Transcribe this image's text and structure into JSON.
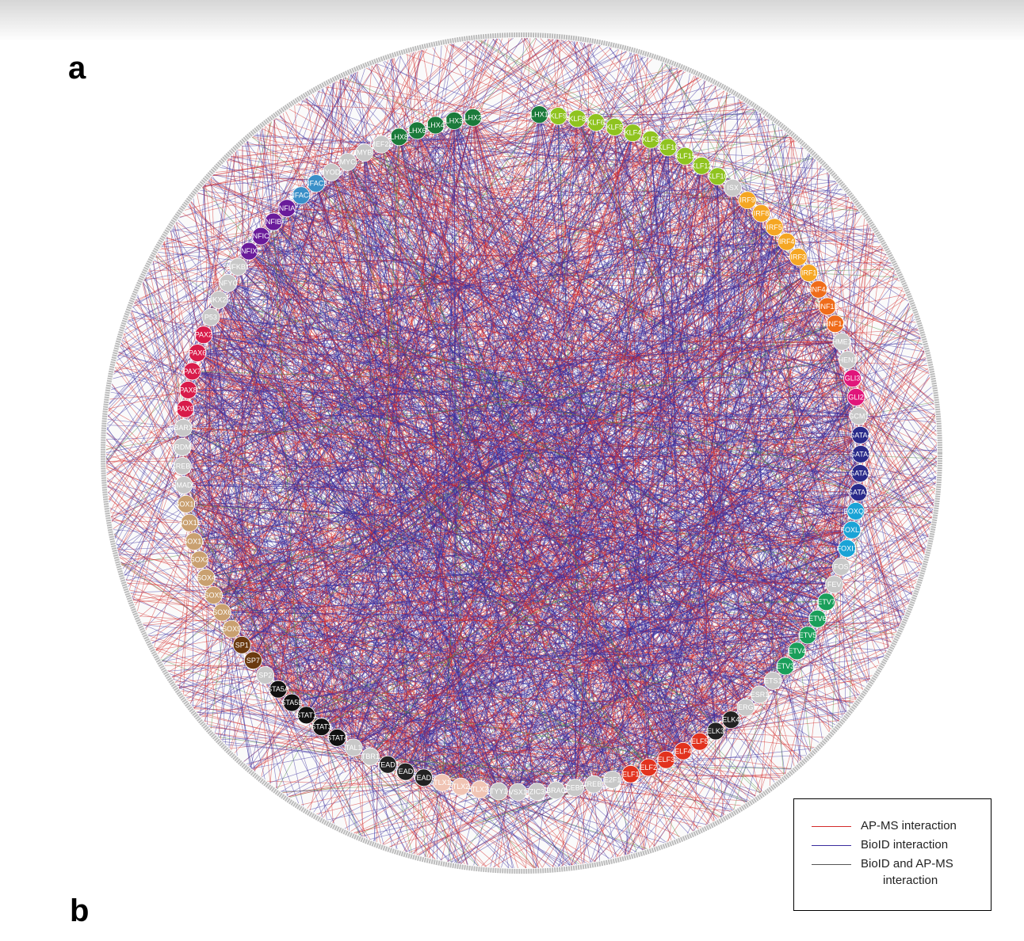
{
  "figure": {
    "panel_a_label": "a",
    "panel_b_label": "b"
  },
  "colors": {
    "ap_ms": "#d42a2a",
    "bioid": "#3a2e9e",
    "both": "#4b8a3a",
    "outer_ring": "#bbbbbb"
  },
  "legend": {
    "ap_ms_label": "AP-MS interaction",
    "bioid_label": "BioID interaction",
    "both_label_line1": "BioID  and AP-MS",
    "both_label_line2": "interaction"
  },
  "nodes": [
    {
      "label": "LHX1",
      "color": "#1b7a3a"
    },
    {
      "label": "KLF9",
      "color": "#8fc31f"
    },
    {
      "label": "KLF8",
      "color": "#8fc31f"
    },
    {
      "label": "KLF6",
      "color": "#8fc31f"
    },
    {
      "label": "KLF5",
      "color": "#8fc31f"
    },
    {
      "label": "KLF4",
      "color": "#8fc31f"
    },
    {
      "label": "KLF3",
      "color": "#8fc31f"
    },
    {
      "label": "KLF16",
      "color": "#8fc31f"
    },
    {
      "label": "KLF15",
      "color": "#8fc31f"
    },
    {
      "label": "KLF12",
      "color": "#8fc31f"
    },
    {
      "label": "KLF10",
      "color": "#8fc31f"
    },
    {
      "label": "ISX",
      "color": "#c8c8c8"
    },
    {
      "label": "IRF9",
      "color": "#f5a623"
    },
    {
      "label": "IRF8",
      "color": "#f5a623"
    },
    {
      "label": "IRF5",
      "color": "#f5a623"
    },
    {
      "label": "IRF4",
      "color": "#f5a623"
    },
    {
      "label": "IRF3",
      "color": "#f5a623"
    },
    {
      "label": "IRF1",
      "color": "#f5a623"
    },
    {
      "label": "HNF4A",
      "color": "#ef6c1a"
    },
    {
      "label": "HNF1B",
      "color": "#ef6c1a"
    },
    {
      "label": "HNF1A",
      "color": "#ef6c1a"
    },
    {
      "label": "HME1",
      "color": "#c8c8c8"
    },
    {
      "label": "HEN1",
      "color": "#c8c8c8"
    },
    {
      "label": "GLI3",
      "color": "#e0157a"
    },
    {
      "label": "GLI2",
      "color": "#e0157a"
    },
    {
      "label": "GCM1",
      "color": "#c8c8c8"
    },
    {
      "label": "GATA4",
      "color": "#2a2a8a"
    },
    {
      "label": "GATA3",
      "color": "#2a2a8a"
    },
    {
      "label": "GATA2",
      "color": "#2a2a8a"
    },
    {
      "label": "GATA1",
      "color": "#2a2a8a"
    },
    {
      "label": "FOXQ1",
      "color": "#1aa3d6"
    },
    {
      "label": "FOXL1",
      "color": "#1aa3d6"
    },
    {
      "label": "FOXI1",
      "color": "#1aa3d6"
    },
    {
      "label": "FOS",
      "color": "#c8c8c8"
    },
    {
      "label": "FEV",
      "color": "#c8c8c8"
    },
    {
      "label": "ETV7",
      "color": "#1a9e5a"
    },
    {
      "label": "ETV6",
      "color": "#1a9e5a"
    },
    {
      "label": "ETV5",
      "color": "#1a9e5a"
    },
    {
      "label": "ETV4",
      "color": "#1a9e5a"
    },
    {
      "label": "ETV3",
      "color": "#1a9e5a"
    },
    {
      "label": "ETS1",
      "color": "#c8c8c8"
    },
    {
      "label": "ESR1",
      "color": "#c8c8c8"
    },
    {
      "label": "ERG",
      "color": "#c8c8c8"
    },
    {
      "label": "ELK4",
      "color": "#222222"
    },
    {
      "label": "ELK3",
      "color": "#222222"
    },
    {
      "label": "ELF5",
      "color": "#e2321e"
    },
    {
      "label": "ELF4",
      "color": "#e2321e"
    },
    {
      "label": "ELF3",
      "color": "#e2321e"
    },
    {
      "label": "ELF2",
      "color": "#e2321e"
    },
    {
      "label": "ELF1",
      "color": "#e2321e"
    },
    {
      "label": "E2F1",
      "color": "#c8c8c8"
    },
    {
      "label": "CREB1",
      "color": "#c8c8c8"
    },
    {
      "label": "CEBP",
      "color": "#c8c8c8"
    },
    {
      "label": "BRAC",
      "color": "#c8c8c8"
    },
    {
      "label": "ZIC3",
      "color": "#c8c8c8"
    },
    {
      "label": "VSX1",
      "color": "#c8c8c8"
    },
    {
      "label": "TYY1",
      "color": "#c8c8c8"
    },
    {
      "label": "TLX3",
      "color": "#f0c4b4"
    },
    {
      "label": "TLX2",
      "color": "#f0c4b4"
    },
    {
      "label": "TLX1",
      "color": "#f0c4b4"
    },
    {
      "label": "TEAD3",
      "color": "#222222"
    },
    {
      "label": "TEAD2",
      "color": "#222222"
    },
    {
      "label": "TEAD1",
      "color": "#222222"
    },
    {
      "label": "TBR1",
      "color": "#c8c8c8"
    },
    {
      "label": "TAL1",
      "color": "#c8c8c8"
    },
    {
      "label": "STAT4",
      "color": "#111111"
    },
    {
      "label": "STAT3",
      "color": "#111111"
    },
    {
      "label": "STAT1",
      "color": "#111111"
    },
    {
      "label": "STA5B",
      "color": "#111111"
    },
    {
      "label": "STA5A",
      "color": "#111111"
    },
    {
      "label": "SP2",
      "color": "#c8c8c8"
    },
    {
      "label": "SP7",
      "color": "#6b3a10"
    },
    {
      "label": "SP1",
      "color": "#6b3a10"
    },
    {
      "label": "SOX9",
      "color": "#c9a070"
    },
    {
      "label": "SOX6",
      "color": "#c9a070"
    },
    {
      "label": "SOX5",
      "color": "#c9a070"
    },
    {
      "label": "SOX4",
      "color": "#c9a070"
    },
    {
      "label": "SOX2",
      "color": "#c9a070"
    },
    {
      "label": "SOX17",
      "color": "#c9a070"
    },
    {
      "label": "SOX15",
      "color": "#c9a070"
    },
    {
      "label": "SOX10",
      "color": "#c9a070"
    },
    {
      "label": "SMAD5",
      "color": "#c8c8c8"
    },
    {
      "label": "CREB1",
      "color": "#c8c8c8"
    },
    {
      "label": "PRDM1",
      "color": "#c8c8c8"
    },
    {
      "label": "PBARX5",
      "color": "#c8c8c8"
    },
    {
      "label": "PAX9",
      "color": "#d81b4a"
    },
    {
      "label": "PAX8",
      "color": "#d81b4a"
    },
    {
      "label": "PAX7",
      "color": "#d81b4a"
    },
    {
      "label": "PAX6",
      "color": "#d81b4a"
    },
    {
      "label": "PAX2",
      "color": "#d81b4a"
    },
    {
      "label": "P53",
      "color": "#c8c8c8"
    },
    {
      "label": "NKX25",
      "color": "#c8c8c8"
    },
    {
      "label": "NFYC",
      "color": "#c8c8c8"
    },
    {
      "label": "NFKB1",
      "color": "#c8c8c8"
    },
    {
      "label": "NFIX",
      "color": "#6a1b9a"
    },
    {
      "label": "NFIC",
      "color": "#6a1b9a"
    },
    {
      "label": "NFIB",
      "color": "#6a1b9a"
    },
    {
      "label": "NFIA",
      "color": "#6a1b9a"
    },
    {
      "label": "NFAC4",
      "color": "#3a8fc8"
    },
    {
      "label": "NFAC3",
      "color": "#3a8fc8"
    },
    {
      "label": "MYOD1",
      "color": "#c8c8c8"
    },
    {
      "label": "MYC",
      "color": "#c8c8c8"
    },
    {
      "label": "MYB",
      "color": "#c8c8c8"
    },
    {
      "label": "MEF2A",
      "color": "#c8c8c8"
    },
    {
      "label": "LHX8",
      "color": "#1b7a3a"
    },
    {
      "label": "LHX6",
      "color": "#1b7a3a"
    },
    {
      "label": "LHX4",
      "color": "#1b7a3a"
    },
    {
      "label": "LHX3",
      "color": "#1b7a3a"
    },
    {
      "label": "LHX2",
      "color": "#1b7a3a"
    }
  ]
}
